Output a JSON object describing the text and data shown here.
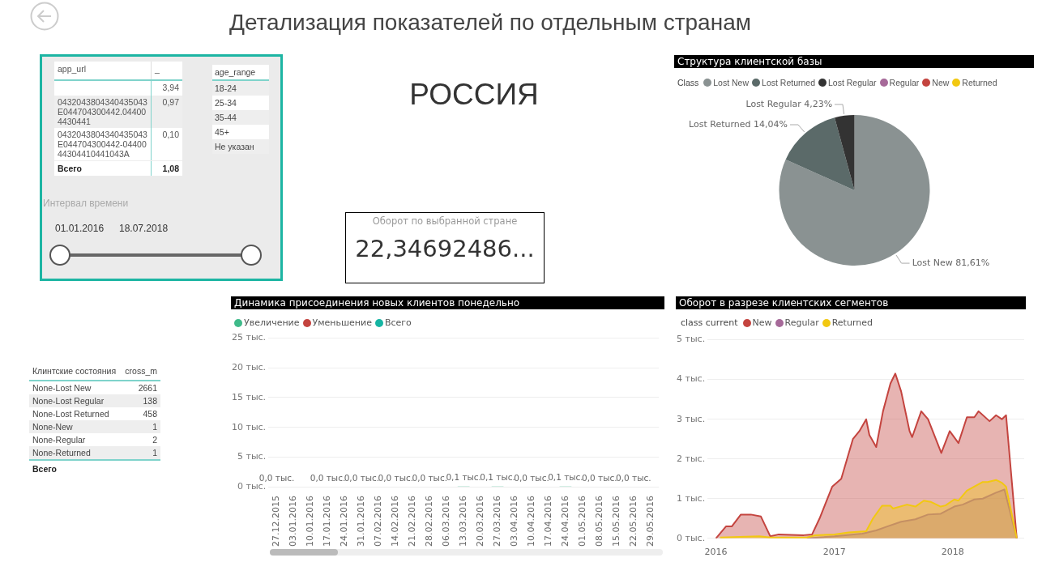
{
  "chart_data": [
    {
      "type": "other",
      "title": "Детализация показателей по отдельным странам",
      "annotations": [
        "РОССИЯ"
      ]
    },
    {
      "type": "other",
      "xlabel": "app_url",
      "ylabel": "_",
      "categories": [
        null,
        "0432043804340435043E044704300442.044004430441",
        "0432043804340435043E044704300442-0440044304410441043A"
      ],
      "values": [
        3.94,
        0.97,
        0.1
      ],
      "value_labels": [
        "3,94",
        "0,97",
        "0,10"
      ],
      "annotations": [
        "Всего",
        "1,08"
      ]
    },
    {
      "type": "other",
      "xlabel": "age_range",
      "categories": [
        "18-24",
        "25-34",
        "35-44",
        "45+",
        "Не указан"
      ]
    },
    {
      "type": "other",
      "title": "Интервал времени",
      "annotations": [
        "01.01.2016",
        "18.07.2018"
      ]
    },
    {
      "type": "other",
      "title": "Оборот по выбранной стране",
      "annotations": [
        "22,34692486..."
      ]
    },
    {
      "type": "pie",
      "title": "Структура клиентской базы",
      "legend_title": "Class",
      "legend": "top left",
      "categories": [
        "Lost New",
        "Lost Returned",
        "Lost Regular",
        "Regular",
        "New",
        "Returned"
      ],
      "values": [
        81.61,
        14.04,
        4.23,
        null,
        null,
        null
      ],
      "value_labels": [
        "81,61%",
        "14,04%",
        "4,23%",
        null,
        null,
        null
      ],
      "colors": [
        "#8a9292",
        "#5b6a69",
        "#333333",
        "#a66999",
        "#c4443f",
        "#f2c811"
      ]
    },
    {
      "type": "bar",
      "title": "Динамика присоединения новых клиентов понедельно",
      "legend": "top left",
      "grid": "y",
      "categories": [
        "27.12.2015",
        "03.01.2016",
        "10.01.2016",
        "17.01.2016",
        "24.01.2016",
        "31.01.2016",
        "07.02.2016",
        "14.02.2016",
        "21.02.2016",
        "28.02.2016",
        "06.03.2016",
        "13.03.2016",
        "20.03.2016",
        "27.03.2016",
        "03.04.2016",
        "10.04.2016",
        "17.04.2016",
        "24.04.2016",
        "01.05.2016",
        "08.05.2016",
        "15.05.2016",
        "22.05.2016",
        "29.05.2016"
      ],
      "ylim": [
        0,
        25
      ],
      "yticks": [
        {
          "value": 0,
          "label": "0 тыс."
        },
        {
          "value": 5,
          "label": "5 тыс."
        },
        {
          "value": 10,
          "label": "10 тыс."
        },
        {
          "value": 15,
          "label": "15 тыс."
        },
        {
          "value": 20,
          "label": "20 тыс."
        },
        {
          "value": 25,
          "label": "25 тыс."
        }
      ],
      "series": [
        {
          "name": "Увеличение",
          "color": "#3fba8a",
          "values": [
            0,
            null,
            null,
            0,
            null,
            0,
            null,
            0,
            null,
            0,
            null,
            0.1,
            null,
            0.1,
            null,
            0,
            null,
            0.1,
            null,
            0,
            null,
            0,
            null
          ],
          "value_labels": [
            "0,0 тыс.",
            null,
            null,
            "0,0 тыс.",
            null,
            "0,0 тыс.",
            null,
            "0,0 тыс.",
            null,
            "0,0 тыс.",
            null,
            "0,1 тыс.",
            null,
            "0,1 тыс.",
            null,
            "0,0 тыс.",
            null,
            "0,1 тыс.",
            null,
            "0,0 тыс.",
            null,
            "0,0 тыс.",
            null
          ]
        },
        {
          "name": "Уменьшение",
          "color": "#c4443f",
          "values": [
            null,
            null,
            null,
            null,
            null,
            null,
            null,
            null,
            null,
            null,
            null,
            null,
            null,
            null,
            null,
            null,
            null,
            null,
            null,
            null,
            null,
            null,
            null
          ]
        },
        {
          "name": "Всего",
          "color": "#16b5a3",
          "values": [
            null,
            null,
            null,
            null,
            null,
            null,
            null,
            null,
            null,
            null,
            null,
            null,
            null,
            null,
            null,
            null,
            null,
            null,
            null,
            null,
            null,
            null,
            null
          ]
        }
      ]
    },
    {
      "type": "area",
      "title": "Оборот в разрезе клиентских сегментов",
      "legend_title": "class current",
      "legend": "top left",
      "grid": "y",
      "marker": "none",
      "xlim": [
        "2015-12-06",
        "2018-08-10"
      ],
      "xticks": [
        "2016",
        "2017",
        "2018"
      ],
      "ylim": [
        0,
        5
      ],
      "yticks": [
        {
          "value": 0,
          "label": "0 тыс."
        },
        {
          "value": 1,
          "label": "1 тыс."
        },
        {
          "value": 2,
          "label": "2 тыс."
        },
        {
          "value": 3,
          "label": "3 тыс."
        },
        {
          "value": 4,
          "label": "4 тыс."
        },
        {
          "value": 5,
          "label": "5 тыс."
        }
      ],
      "series": [
        {
          "name": "New",
          "color": "#c4443f",
          "x": [
            "2016-01-01",
            "2016-02-01",
            "2016-02-19",
            "2016-03-18",
            "2016-04-18",
            "2016-05-19",
            "2016-06-17",
            "2016-07-13",
            "2016-09-28",
            "2016-10-24",
            "2016-11-16",
            "2016-12-25",
            "2017-01-22",
            "2017-02-27",
            "2017-03-19",
            "2017-04-09",
            "2017-04-19",
            "2017-05-10",
            "2017-05-31",
            "2017-06-23",
            "2017-07-08",
            "2017-07-26",
            "2017-08-21",
            "2017-08-29",
            "2017-09-26",
            "2017-10-17",
            "2017-11-27",
            "2017-12-23",
            "2018-01-19",
            "2018-02-14",
            "2018-03-09",
            "2018-03-22",
            "2018-04-25",
            "2018-05-15",
            "2018-06-02",
            "2018-06-15",
            "2018-07-18"
          ],
          "values": [
            0,
            0.3,
            0.3,
            0.6,
            0.6,
            0.55,
            0.05,
            0.1,
            0.08,
            0.1,
            0.5,
            1.3,
            1.5,
            2.5,
            2.7,
            3.0,
            2.6,
            2.3,
            3.2,
            3.9,
            4.15,
            3.7,
            2.7,
            2.55,
            3.2,
            3.0,
            2.15,
            2.7,
            2.4,
            3.05,
            3.05,
            3.2,
            2.95,
            3.1,
            3.0,
            3.1,
            0
          ]
        },
        {
          "name": "Regular",
          "color": "#a66999",
          "x": [
            "2016-10-08",
            "2017-01-01",
            "2017-03-28",
            "2017-05-10",
            "2017-06-13",
            "2017-07-26",
            "2017-09-08",
            "2017-10-17",
            "2017-11-25",
            "2018-01-06",
            "2018-02-01",
            "2018-03-09",
            "2018-04-04",
            "2018-05-15",
            "2018-06-10",
            "2018-07-18"
          ],
          "values": [
            0,
            0.05,
            0.12,
            0.2,
            0.3,
            0.42,
            0.48,
            0.6,
            0.62,
            0.8,
            0.85,
            0.98,
            1.0,
            1.15,
            1.23,
            0
          ]
        },
        {
          "name": "Returned",
          "color": "#f2c811",
          "x": [
            "2016-01-14",
            "2016-05-14",
            "2016-06-17",
            "2016-10-08",
            "2016-11-03",
            "2017-01-01",
            "2017-02-14",
            "2017-04-09",
            "2017-04-30",
            "2017-05-28",
            "2017-06-23",
            "2017-07-01",
            "2017-08-13",
            "2017-09-08",
            "2017-10-04",
            "2017-10-25",
            "2017-11-25",
            "2017-12-10",
            "2018-01-06",
            "2018-01-19",
            "2018-02-14",
            "2018-04-04",
            "2018-04-19",
            "2018-05-15",
            "2018-06-02",
            "2018-06-15",
            "2018-07-18"
          ],
          "values": [
            0.02,
            0.05,
            0.02,
            0.02,
            0.08,
            0.1,
            0.15,
            0.18,
            0.5,
            0.82,
            0.82,
            0.75,
            0.85,
            0.8,
            0.95,
            0.92,
            0.8,
            0.83,
            0.98,
            0.95,
            1.2,
            1.42,
            1.42,
            1.47,
            1.4,
            1.3,
            0
          ]
        }
      ]
    },
    {
      "type": "other",
      "xlabel": "Клинтские состояния",
      "ylabel": "cross_m",
      "data_labels": true,
      "categories": [
        "None-Lost New",
        "None-Lost Regular",
        "None-Lost Returned",
        "None-New",
        "None-Regular",
        "None-Returned"
      ],
      "values": [
        2661,
        138,
        458,
        1,
        2,
        1
      ],
      "annotations": [
        "Всего"
      ]
    }
  ]
}
